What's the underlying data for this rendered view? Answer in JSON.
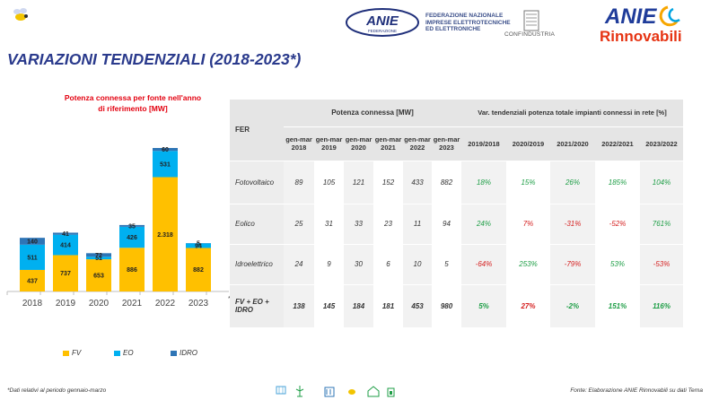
{
  "header": {
    "anie_logo_text": "ANIE",
    "anie_sub_text": "FEDERAZIONE",
    "federation_lines": [
      "FEDERAZIONE NAZIONALE",
      "IMPRESE ELETTROTECNICHE",
      "ED ELETTRONICHE"
    ],
    "confindustria_text": "CONFINDUSTRIA",
    "rinnovabili_logo_top": "ANIE",
    "rinnovabili_logo_bottom": "Rinnovabili"
  },
  "page_title": "VARIAZIONI TENDENZIALI (2018-2023*)",
  "chart_title_line1": "Potenza connessa per fonte nell'anno",
  "chart_title_line2": "di riferimento [MW]",
  "chart_data": {
    "type": "bar",
    "stacked": true,
    "title": "Potenza connessa per fonte nell'anno di riferimento [MW]",
    "categories": [
      "2018",
      "2019",
      "2020",
      "2021",
      "2022",
      "2023"
    ],
    "category_note": "*",
    "series": [
      {
        "name": "FV",
        "values": [
          437,
          737,
          653,
          886,
          2318,
          882
        ],
        "labels": [
          "437",
          "737",
          "653",
          "886",
          "2.318",
          "882"
        ],
        "color": "#ffc000"
      },
      {
        "name": "EO",
        "values": [
          511,
          414,
          51,
          426,
          531,
          94
        ],
        "labels": [
          "511",
          "414",
          "51",
          "426",
          "531",
          "94"
        ],
        "color": "#00b0f0"
      },
      {
        "name": "IDRO",
        "values": [
          140,
          41,
          72,
          35,
          60,
          5
        ],
        "labels": [
          "140",
          "41",
          "72",
          "35",
          "60",
          "5"
        ],
        "color": "#2e75b6"
      }
    ],
    "ylim": [
      0,
      3000
    ],
    "grid": false,
    "legend_position": "bottom"
  },
  "legend": [
    {
      "label": "FV",
      "color": "#ffc000"
    },
    {
      "label": "EO",
      "color": "#00b0f0"
    },
    {
      "label": "IDRO",
      "color": "#2e75b6"
    }
  ],
  "table": {
    "fer_header": "FER",
    "group1_header": "Potenza connessa [MW]",
    "group2_header": "Var. tendenziali potenza totale impianti connessi in rete [%]",
    "year_headers": [
      [
        "gen-mar",
        "2018"
      ],
      [
        "gen-mar",
        "2019"
      ],
      [
        "gen-mar",
        "2020"
      ],
      [
        "gen-mar",
        "2021"
      ],
      [
        "gen-mar",
        "2022"
      ],
      [
        "gen-mar",
        "2023"
      ]
    ],
    "var_headers": [
      "2019/2018",
      "2020/2019",
      "2021/2020",
      "2022/2021",
      "2023/2022"
    ],
    "rows": [
      {
        "label": "Fotovoltaico",
        "values": [
          "89",
          "105",
          "121",
          "152",
          "433",
          "882"
        ],
        "vars": [
          {
            "v": "18%",
            "s": "pos"
          },
          {
            "v": "15%",
            "s": "pos"
          },
          {
            "v": "26%",
            "s": "pos"
          },
          {
            "v": "185%",
            "s": "pos"
          },
          {
            "v": "104%",
            "s": "pos"
          }
        ]
      },
      {
        "label": "Eolico",
        "values": [
          "25",
          "31",
          "33",
          "23",
          "11",
          "94"
        ],
        "vars": [
          {
            "v": "24%",
            "s": "pos"
          },
          {
            "v": "7%",
            "s": "neg"
          },
          {
            "v": "-31%",
            "s": "neg"
          },
          {
            "v": "-52%",
            "s": "neg"
          },
          {
            "v": "761%",
            "s": "pos"
          }
        ]
      },
      {
        "label": "Idroelettrico",
        "values": [
          "24",
          "9",
          "30",
          "6",
          "10",
          "5"
        ],
        "vars": [
          {
            "v": "-64%",
            "s": "neg"
          },
          {
            "v": "253%",
            "s": "pos"
          },
          {
            "v": "-79%",
            "s": "neg"
          },
          {
            "v": "53%",
            "s": "pos"
          },
          {
            "v": "-53%",
            "s": "neg"
          }
        ]
      }
    ],
    "total": {
      "label_line1": "FV + EO +",
      "label_line2": "IDRO",
      "values": [
        "138",
        "145",
        "184",
        "181",
        "453",
        "980"
      ],
      "vars": [
        {
          "v": "5%",
          "s": "pos"
        },
        {
          "v": "27%",
          "s": "neg"
        },
        {
          "v": "-2%",
          "s": "pos"
        },
        {
          "v": "151%",
          "s": "pos"
        },
        {
          "v": "116%",
          "s": "pos"
        }
      ]
    }
  },
  "footer": {
    "left_note": "*Dati relativi al periodo gennaio-marzo",
    "right_note": "Fonte: Elaborazione ANIE Rinnovabili su dati Terna"
  }
}
